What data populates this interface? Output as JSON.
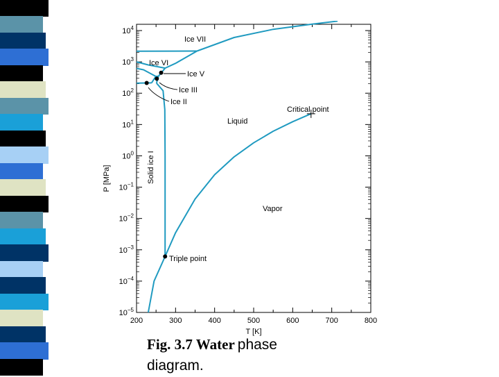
{
  "decoration": {
    "stripe_colors": [
      "#000000",
      "#5b93a8",
      "#003366",
      "#2e6fd4",
      "#000000",
      "#dfe3c3",
      "#5b93a8",
      "#1aa0d8",
      "#000000",
      "#a7d0f5",
      "#2e6fd4",
      "#dfe3c3",
      "#000000",
      "#5b93a8",
      "#1aa0d8",
      "#003366",
      "#a7d0f5",
      "#003366",
      "#1aa0d8",
      "#dfe3c3",
      "#003366",
      "#2e6fd4",
      "#000000"
    ]
  },
  "caption": {
    "part1": "Fig. 3.7 Water",
    "part2": "phase",
    "part3": "diagram."
  },
  "chart_data": {
    "type": "line",
    "xlabel": "T [K]",
    "ylabel": "P [MPa]",
    "xlim": [
      200,
      800
    ],
    "ylim_log10": [
      -5,
      4.2
    ],
    "y_scale": "log",
    "x_ticks": [
      200,
      300,
      400,
      500,
      600,
      700,
      800
    ],
    "y_tick_exponents": [
      -5,
      -4,
      -3,
      -2,
      -1,
      0,
      1,
      2,
      3,
      4
    ],
    "grid": false,
    "line_color": "#1f9ac0",
    "series": [
      {
        "id": "sublimation",
        "points": [
          [
            230,
            1e-05
          ],
          [
            245,
            0.0001
          ],
          [
            273.16,
            0.000612
          ]
        ]
      },
      {
        "id": "vaporization",
        "points": [
          [
            273.16,
            0.000612
          ],
          [
            300,
            0.0035
          ],
          [
            350,
            0.042
          ],
          [
            400,
            0.25
          ],
          [
            450,
            0.93
          ],
          [
            500,
            2.6
          ],
          [
            550,
            6.1
          ],
          [
            600,
            12.3
          ],
          [
            647,
            22.06
          ]
        ]
      },
      {
        "id": "melting-ice-I",
        "points": [
          [
            273.16,
            0.000612
          ],
          [
            273.16,
            1
          ],
          [
            272.5,
            30
          ],
          [
            268,
            120
          ],
          [
            251.2,
            209.9
          ]
        ]
      },
      {
        "id": "melting-ice-III",
        "points": [
          [
            251.2,
            209.9
          ],
          [
            256.2,
            350.1
          ]
        ]
      },
      {
        "id": "melting-ice-V",
        "points": [
          [
            256.2,
            350.1
          ],
          [
            273.3,
            632.4
          ]
        ]
      },
      {
        "id": "melting-ice-VI",
        "points": [
          [
            273.3,
            632.4
          ],
          [
            300,
            900
          ],
          [
            355,
            2216
          ]
        ]
      },
      {
        "id": "melting-ice-VII",
        "points": [
          [
            355,
            2216
          ],
          [
            450,
            6000
          ],
          [
            550,
            11000
          ],
          [
            650,
            16000
          ],
          [
            715,
            20000
          ]
        ]
      },
      {
        "id": "boundary-Ih-II",
        "points": [
          [
            200,
            210
          ],
          [
            238.5,
            212.9
          ]
        ]
      },
      {
        "id": "boundary-II-III",
        "points": [
          [
            238.5,
            212.9
          ],
          [
            249.4,
            344.3
          ]
        ]
      },
      {
        "id": "boundary-II-V",
        "points": [
          [
            200,
            620
          ],
          [
            218,
            560
          ],
          [
            249.4,
            344.3
          ]
        ]
      },
      {
        "id": "boundary-III-V",
        "points": [
          [
            249.4,
            344.3
          ],
          [
            256.2,
            350.1
          ]
        ]
      },
      {
        "id": "boundary-V-VI",
        "points": [
          [
            200,
            1000
          ],
          [
            230,
            800
          ],
          [
            273.3,
            632.4
          ]
        ]
      },
      {
        "id": "boundary-VI-VII",
        "points": [
          [
            200,
            2200
          ],
          [
            355,
            2216
          ]
        ]
      }
    ],
    "markers": [
      {
        "id": "triple-point",
        "x": 273.16,
        "y": 0.000612,
        "shape": "dot"
      },
      {
        "id": "critical-point",
        "x": 647,
        "y": 22.06,
        "shape": "plus"
      },
      {
        "id": "ice-v-point",
        "x": 263,
        "y": 450,
        "shape": "dot"
      },
      {
        "id": "ice-iii-point",
        "x": 252,
        "y": 290,
        "shape": "dot"
      },
      {
        "id": "ice-ii-point",
        "x": 226,
        "y": 212,
        "shape": "dot"
      }
    ],
    "annotations": [
      {
        "id": "label-ice-vii",
        "text": "Ice VII"
      },
      {
        "id": "label-ice-vi",
        "text": "Ice VI"
      },
      {
        "id": "label-ice-v",
        "text": "Ice V"
      },
      {
        "id": "label-ice-iii",
        "text": "Ice III"
      },
      {
        "id": "label-ice-ii",
        "text": "Ice II"
      },
      {
        "id": "label-critical-point",
        "text": "Critical point"
      },
      {
        "id": "label-liquid",
        "text": "Liquid"
      },
      {
        "id": "label-solid-ice-i",
        "text": "Solid ice I"
      },
      {
        "id": "label-vapor",
        "text": "Vapor"
      },
      {
        "id": "label-triple-point",
        "text": "Triple point"
      }
    ]
  }
}
